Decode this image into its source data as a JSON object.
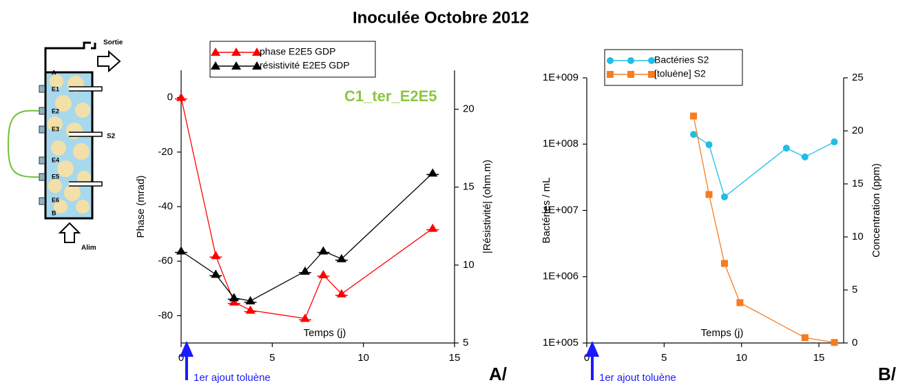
{
  "title": "Inoculée Octobre 2012",
  "diagram": {
    "labels": [
      "Sortie",
      "A",
      "E1",
      "E2",
      "E3",
      "S2",
      "E4",
      "E5",
      "E6",
      "B",
      "Alim"
    ]
  },
  "chart_data": [
    {
      "type": "line",
      "xlabel": "Temps (j)",
      "ylabel": "Phase (mrad)",
      "y2label": "|Résistivité| (ohm.m)",
      "note": "C1_ter_E2E5",
      "arrow_label": "1er ajout toluène",
      "panel_label": "A/",
      "xlim": [
        0,
        15
      ],
      "xticks": [
        0,
        5,
        10,
        15
      ],
      "ylim": [
        -90,
        10
      ],
      "yticks": [
        0,
        -20,
        -40,
        -60,
        -80
      ],
      "y2lim": [
        5,
        22.5
      ],
      "y2ticks": [
        5,
        10,
        15,
        20
      ],
      "legend": "top-left",
      "series": [
        {
          "name": "phase E2E5 GDP",
          "color": "#ff0000",
          "marker": "triangle",
          "x": [
            0,
            1.9,
            2.9,
            3.8,
            6.8,
            7.8,
            8.8,
            13.8
          ],
          "values": [
            0,
            -58,
            -75,
            -78,
            -81,
            -65,
            -72,
            -48
          ]
        },
        {
          "name": "résistivité E2E5 GDP",
          "color": "#000000",
          "marker": "triangle",
          "axis": "y2",
          "x": [
            0,
            1.9,
            2.9,
            3.8,
            6.8,
            7.8,
            8.8,
            13.8
          ],
          "values": [
            10.9,
            9.4,
            7.9,
            7.7,
            9.6,
            10.9,
            10.4,
            15.9
          ]
        }
      ]
    },
    {
      "type": "line",
      "xlabel": "Temps (j)",
      "ylabel": "Bactéries / mL",
      "y2label": "Concentration (ppm)",
      "arrow_label": "1er ajout toluène",
      "panel_label": "B/",
      "xlim": [
        0,
        16.6
      ],
      "xticks": [
        0,
        5,
        10,
        15
      ],
      "ylim": [
        100000,
        1000000000
      ],
      "ylog": true,
      "yticks": [
        {
          "value": 100000,
          "label": "1E+005"
        },
        {
          "value": 1000000,
          "label": "1E+006"
        },
        {
          "value": 10000000,
          "label": "1E+007"
        },
        {
          "value": 100000000,
          "label": "1E+008"
        },
        {
          "value": 1000000000,
          "label": "1E+009"
        }
      ],
      "y2lim": [
        0,
        25
      ],
      "y2ticks": [
        0,
        5,
        10,
        15,
        20,
        25
      ],
      "legend": "top-left",
      "series": [
        {
          "name": "Bactéries S2",
          "color": "#1ebee6",
          "marker": "circle",
          "x": [
            6.9,
            7.9,
            8.9,
            12.9,
            14.1,
            16.0
          ],
          "values": [
            140000000,
            98000000,
            16000000,
            87000000,
            64000000,
            108000000
          ]
        },
        {
          "name": "[toluène] S2",
          "color": "#f57c20",
          "marker": "square",
          "axis": "y2",
          "x": [
            6.9,
            7.9,
            8.9,
            9.9,
            14.1,
            16.0
          ],
          "values": [
            21.4,
            14.0,
            7.5,
            3.8,
            0.5,
            0.05
          ]
        }
      ]
    }
  ]
}
